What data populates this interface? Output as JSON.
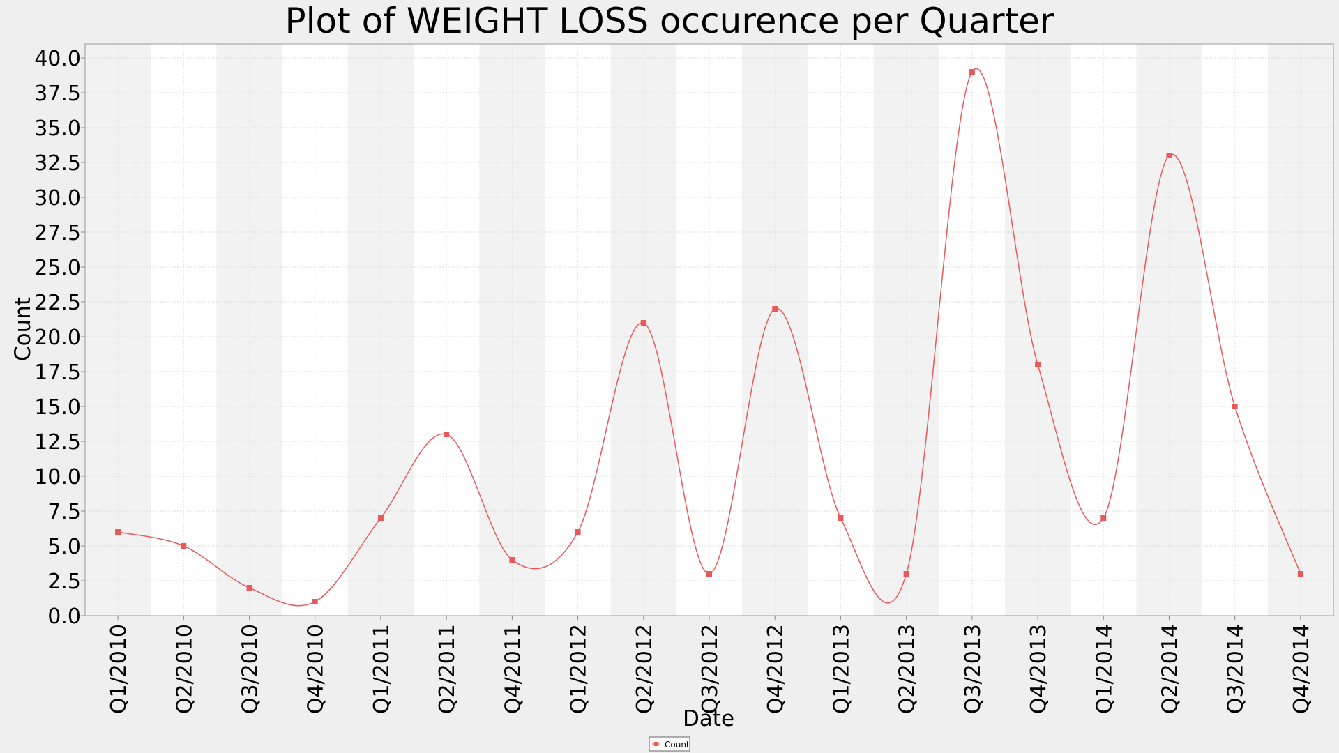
{
  "chart_data": {
    "type": "line",
    "title": "Plot of WEIGHT LOSS occurence per Quarter",
    "xlabel": "Date",
    "ylabel": "Count",
    "ylim": [
      0,
      40
    ],
    "ytick_step": 2.5,
    "categories": [
      "Q1/2010",
      "Q2/2010",
      "Q3/2010",
      "Q4/2010",
      "Q1/2011",
      "Q2/2011",
      "Q4/2011",
      "Q1/2012",
      "Q2/2012",
      "Q3/2012",
      "Q4/2012",
      "Q1/2013",
      "Q2/2013",
      "Q3/2013",
      "Q4/2013",
      "Q1/2014",
      "Q2/2014",
      "Q3/2014",
      "Q4/2014"
    ],
    "series": [
      {
        "name": "Count",
        "color": "#e8595c",
        "values": [
          6,
          5,
          2,
          1,
          7,
          13,
          4,
          6,
          21,
          3,
          22,
          7,
          3,
          39,
          18,
          7,
          33,
          15,
          3
        ]
      }
    ],
    "grid": true,
    "alternating_bands": true,
    "smoothing": "spline",
    "legend": {
      "position": "bottom-center",
      "entries": [
        "Count"
      ]
    }
  }
}
